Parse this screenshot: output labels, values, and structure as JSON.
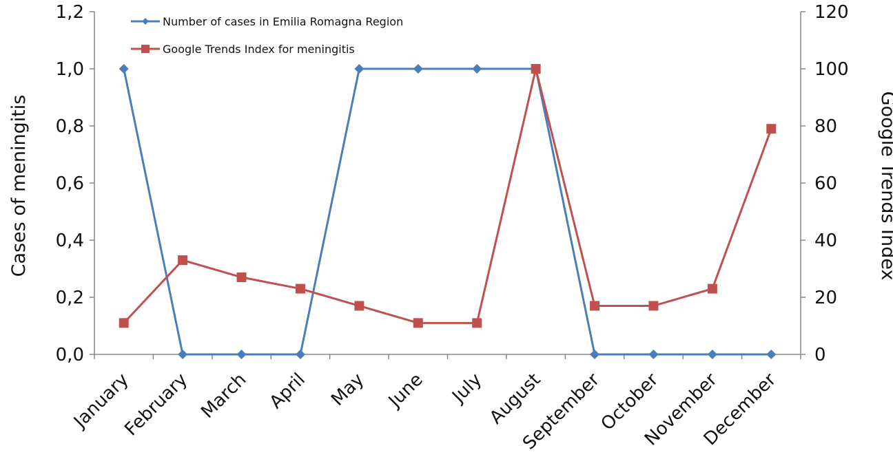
{
  "chart_data": {
    "type": "line",
    "categories": [
      "January",
      "February",
      "March",
      "April",
      "May",
      "June",
      "July",
      "August",
      "September",
      "October",
      "November",
      "December"
    ],
    "y_left": {
      "label": "Cases of meningitis",
      "ylim": [
        0,
        1.2
      ],
      "ticks": [
        "0,0",
        "0,2",
        "0,4",
        "0,6",
        "0,8",
        "1,0",
        "1,2"
      ]
    },
    "y_right": {
      "label": "Google Trends Index",
      "ylim": [
        0,
        120
      ],
      "ticks": [
        "0",
        "20",
        "40",
        "60",
        "80",
        "100",
        "120"
      ]
    },
    "series": [
      {
        "name": "Number of cases in Emilia Romagna Region",
        "axis": "left",
        "color": "#4a7ebb",
        "marker": "diamond",
        "values": [
          1,
          0,
          0,
          0,
          1,
          1,
          1,
          1,
          0,
          0,
          0,
          0
        ]
      },
      {
        "name": "Google Trends Index for meningitis",
        "axis": "right",
        "color": "#c0504d",
        "marker": "square",
        "values": [
          11,
          33,
          27,
          23,
          17,
          11,
          11,
          100,
          17,
          17,
          23,
          79
        ]
      }
    ],
    "legend_position": "top-left",
    "grid": false
  }
}
